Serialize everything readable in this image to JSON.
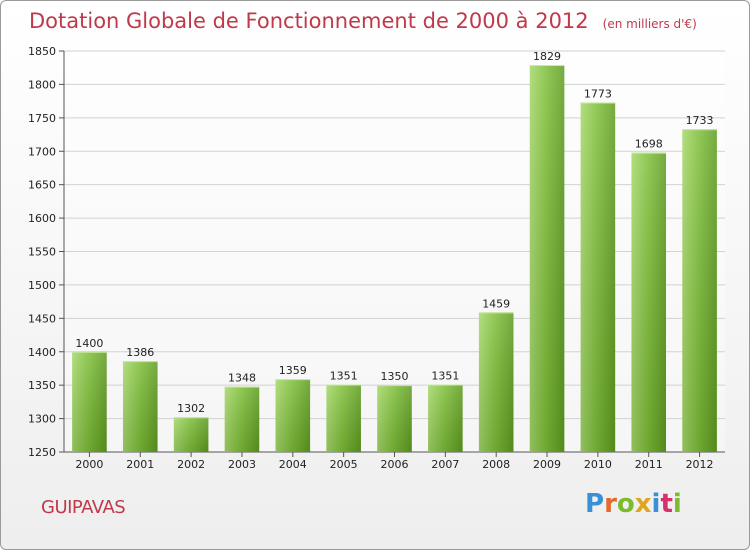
{
  "title": "Dotation Globale de Fonctionnement de 2000 à 2012",
  "unit": "(en milliers d'€)",
  "commune": "GUIPAVAS",
  "logo": {
    "letters": [
      "P",
      "r",
      "o",
      "x",
      "i",
      "t",
      "i"
    ],
    "colors": [
      "#3a8fd6",
      "#e26a2c",
      "#7dbb2e",
      "#e0a51e",
      "#3a8fd6",
      "#d6316b",
      "#7dbb2e"
    ]
  },
  "colors": {
    "bar": "#7fc03a",
    "bar_light": "#a6d86a",
    "bar_dark": "#5f9c1f",
    "accent": "#c0394a"
  },
  "chart_data": {
    "type": "bar",
    "title": "Dotation Globale de Fonctionnement de 2000 à 2012",
    "ylabel": "(en milliers d'€)",
    "categories": [
      "2000",
      "2001",
      "2002",
      "2003",
      "2004",
      "2005",
      "2006",
      "2007",
      "2008",
      "2009",
      "2010",
      "2011",
      "2012"
    ],
    "values": [
      1400,
      1386,
      1302,
      1348,
      1359,
      1351,
      1350,
      1351,
      1459,
      1829,
      1773,
      1698,
      1733
    ],
    "ylim": [
      1250,
      1850
    ],
    "yticks": [
      1250,
      1300,
      1350,
      1400,
      1450,
      1500,
      1550,
      1600,
      1650,
      1700,
      1750,
      1800,
      1850
    ],
    "grid": true
  }
}
